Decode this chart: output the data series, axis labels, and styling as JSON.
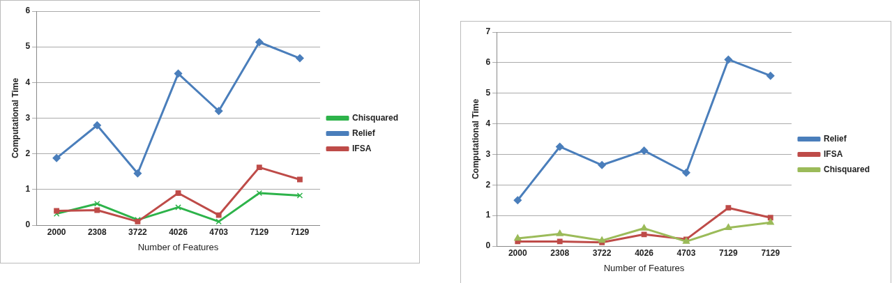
{
  "chart_data": [
    {
      "type": "line",
      "xlabel": "Number of Features",
      "ylabel": "Computational Time",
      "categories": [
        "2000",
        "2308",
        "3722",
        "4026",
        "4703",
        "7129",
        "7129"
      ],
      "series": [
        {
          "name": "Chisquared",
          "color": "#2db34a",
          "marker": "cross",
          "values": [
            0.32,
            0.6,
            0.15,
            0.5,
            0.1,
            0.9,
            0.83
          ]
        },
        {
          "name": "Relief",
          "color": "#4a7ebb",
          "marker": "diamond",
          "values": [
            1.88,
            2.8,
            1.45,
            4.25,
            3.2,
            5.13,
            4.68
          ]
        },
        {
          "name": "IFSA",
          "color": "#be4b48",
          "marker": "square",
          "values": [
            0.4,
            0.42,
            0.1,
            0.9,
            0.28,
            1.62,
            1.28
          ]
        }
      ],
      "ylim": [
        0,
        6
      ],
      "yticks": [
        0,
        1,
        2,
        3,
        4,
        5,
        6
      ],
      "grid": "y",
      "legend": "right",
      "line_style": "solid"
    },
    {
      "type": "line",
      "xlabel": "Number of Features",
      "ylabel": "Computational Time",
      "categories": [
        "2000",
        "2308",
        "3722",
        "4026",
        "4703",
        "7129",
        "7129"
      ],
      "series": [
        {
          "name": "Relief",
          "color": "#4a7ebb",
          "marker": "diamond",
          "values": [
            1.5,
            3.25,
            2.65,
            3.12,
            2.4,
            6.1,
            5.57
          ]
        },
        {
          "name": "IFSA",
          "color": "#be4b48",
          "marker": "square",
          "values": [
            0.15,
            0.15,
            0.12,
            0.38,
            0.22,
            1.25,
            0.93
          ]
        },
        {
          "name": "Chisquared",
          "color": "#9bbb59",
          "marker": "triangle",
          "values": [
            0.25,
            0.4,
            0.18,
            0.58,
            0.15,
            0.6,
            0.77
          ]
        }
      ],
      "ylim": [
        0,
        7
      ],
      "yticks": [
        0,
        1,
        2,
        3,
        4,
        5,
        6,
        7
      ],
      "grid": "y",
      "legend": "right",
      "line_style": "solid"
    }
  ]
}
